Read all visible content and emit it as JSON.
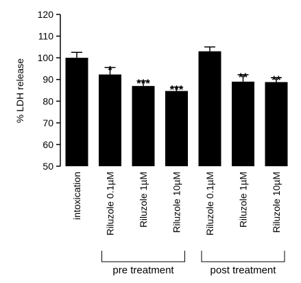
{
  "chart_data": {
    "type": "bar",
    "ylabel": "% LDH release",
    "xlabel": "",
    "ylim": [
      50,
      120
    ],
    "yticks": [
      50,
      60,
      70,
      80,
      90,
      100,
      110,
      120
    ],
    "categories": [
      "intoxication",
      "Riluzole 0.1µM",
      "Riluzole 1µM",
      "Riluzole 10µM",
      "Riluzole 0.1µM",
      "Riluzole 1µM",
      "Riluzole 10µM"
    ],
    "values": [
      100,
      92.3,
      87,
      84.7,
      103,
      89,
      88.8
    ],
    "errors": [
      2.5,
      3.2,
      2.3,
      1.8,
      2.0,
      3.2,
      2.0
    ],
    "significance": [
      "",
      "*",
      "***",
      "***",
      "",
      "**",
      "**"
    ],
    "groups": [
      {
        "label": "pre treatment",
        "start": 1,
        "end": 3
      },
      {
        "label": "post treatment",
        "start": 4,
        "end": 6
      }
    ],
    "grid": false,
    "bar_color": "#000000"
  }
}
